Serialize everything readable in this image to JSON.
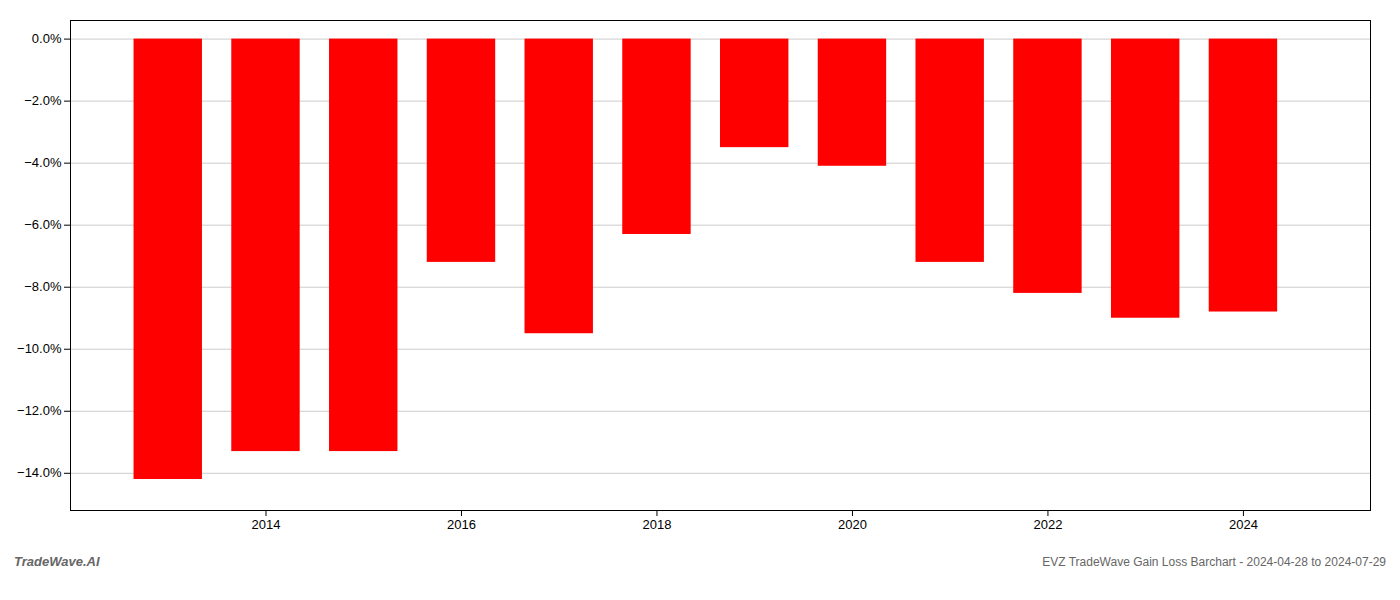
{
  "chart_data": {
    "type": "bar",
    "title": "EVZ TradeWave Gain Loss Barchart - 2024-04-28 to 2024-07-29",
    "annotations": [
      "TradeWave.AI"
    ],
    "x": [
      2013,
      2014,
      2015,
      2016,
      2017,
      2018,
      2019,
      2020,
      2021,
      2022,
      2023,
      2024
    ],
    "values": [
      -14.2,
      -13.3,
      -13.3,
      -7.2,
      -9.5,
      -6.3,
      -3.5,
      -4.1,
      -7.2,
      -8.2,
      -9.0,
      -8.8
    ],
    "color": "#ff0000",
    "xlim": [
      2012.0,
      2025.3
    ],
    "xticks": [
      2014,
      2016,
      2018,
      2020,
      2022,
      2024
    ],
    "ylim": [
      -15.2,
      0.6
    ],
    "yticks": [
      {
        "value": 0.0,
        "label": "0.0%"
      },
      {
        "value": -2.0,
        "label": "−2.0%"
      },
      {
        "value": -4.0,
        "label": "−4.0%"
      },
      {
        "value": -6.0,
        "label": "−6.0%"
      },
      {
        "value": -8.0,
        "label": "−8.0%"
      },
      {
        "value": -10.0,
        "label": "−10.0%"
      },
      {
        "value": -12.0,
        "label": "−12.0%"
      },
      {
        "value": -14.0,
        "label": "−14.0%"
      }
    ],
    "grid": true
  }
}
